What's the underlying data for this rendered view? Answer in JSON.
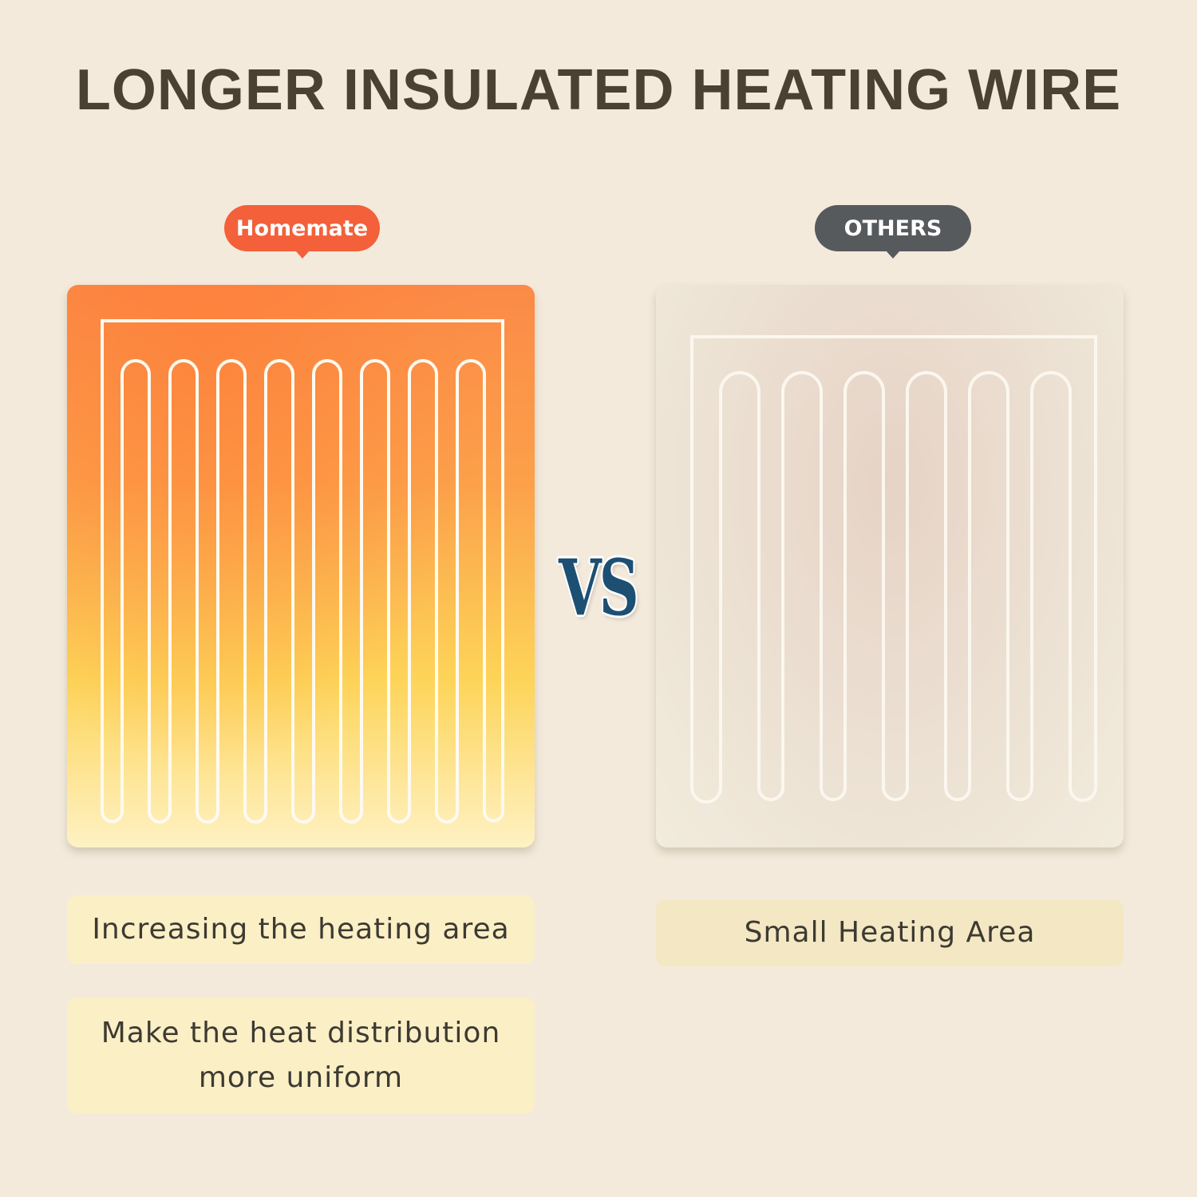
{
  "title": "LONGER INSULATED HEATING WIRE",
  "left": {
    "badge": "Homemate",
    "badge_color": "#f3603a",
    "captions": [
      "Increasing the heating area"
    ],
    "caption2_lines": [
      "Make the heat distribution",
      "more uniform"
    ]
  },
  "vs_label": "VS",
  "right": {
    "badge": "OTHERS",
    "badge_color": "#575a5d",
    "caption": "Small Heating Area"
  }
}
